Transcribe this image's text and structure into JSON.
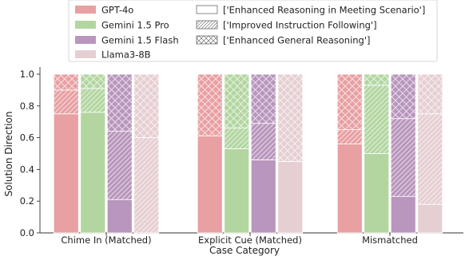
{
  "chart_data": {
    "type": "bar",
    "stacked": true,
    "xlabel": "Case Category",
    "ylabel": "Solution Direction",
    "ylim": [
      0,
      1.0
    ],
    "yticks": [
      "0.0",
      "0.2",
      "0.4",
      "0.6",
      "0.8",
      "1.0"
    ],
    "categories": [
      "Chime In (Matched)",
      "Explicit Cue (Matched)",
      "Mismatched"
    ],
    "models": [
      {
        "name": "GPT-4o",
        "color": "#e8a0a2"
      },
      {
        "name": "Gemini 1.5 Pro",
        "color": "#b3d6a1"
      },
      {
        "name": "Gemini 1.5 Flash",
        "color": "#b996bd"
      },
      {
        "name": "Llama3-8B",
        "color": "#e6cfd2"
      }
    ],
    "segment_types": [
      {
        "name": "['Enhanced Reasoning in Meeting Scenario']",
        "hatch": "none"
      },
      {
        "name": "['Improved Instruction Following']",
        "hatch": "diagonal"
      },
      {
        "name": "['Enhanced General Reasoning']",
        "hatch": "cross"
      }
    ],
    "values": {
      "Chime In (Matched)": {
        "GPT-4o": [
          0.75,
          0.15,
          0.1
        ],
        "Gemini 1.5 Pro": [
          0.76,
          0.15,
          0.09
        ],
        "Gemini 1.5 Flash": [
          0.21,
          0.43,
          0.36
        ],
        "Llama3-8B": [
          0.0,
          0.6,
          0.4
        ]
      },
      "Explicit Cue (Matched)": {
        "GPT-4o": [
          0.61,
          0.0,
          0.39
        ],
        "Gemini 1.5 Pro": [
          0.53,
          0.13,
          0.34
        ],
        "Gemini 1.5 Flash": [
          0.46,
          0.23,
          0.31
        ],
        "Llama3-8B": [
          0.45,
          0.0,
          0.55
        ]
      },
      "Mismatched": {
        "GPT-4o": [
          0.56,
          0.09,
          0.35
        ],
        "Gemini 1.5 Pro": [
          0.5,
          0.43,
          0.07
        ],
        "Gemini 1.5 Flash": [
          0.23,
          0.49,
          0.28
        ],
        "Llama3-8B": [
          0.18,
          0.57,
          0.25
        ]
      }
    },
    "legend": {
      "placement": "top",
      "items": [
        "GPT-4o",
        "Gemini 1.5 Pro",
        "Gemini 1.5 Flash",
        "Llama3-8B",
        "['Enhanced Reasoning in Meeting Scenario']",
        "['Improved Instruction Following']",
        "['Enhanced General Reasoning']"
      ]
    },
    "grid": false
  }
}
